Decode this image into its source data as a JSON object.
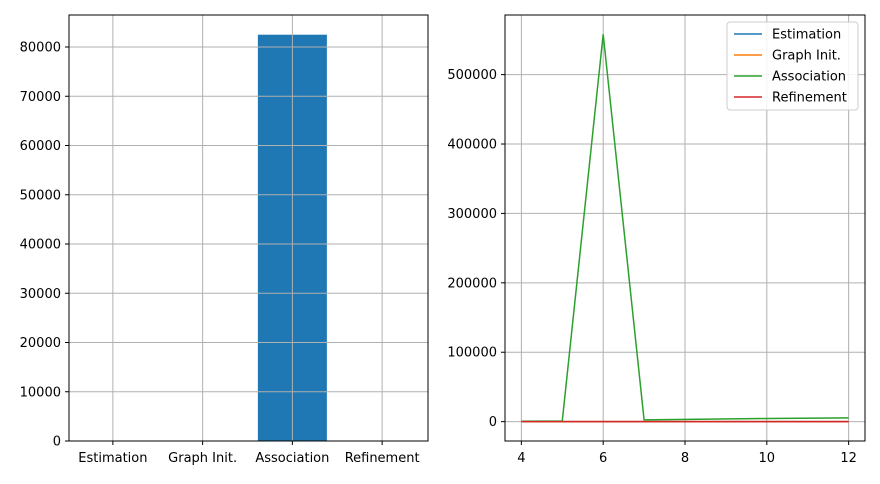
{
  "chart_data": [
    {
      "type": "bar",
      "categories": [
        "Estimation",
        "Graph Init.",
        "Association",
        "Refinement"
      ],
      "values": [
        0,
        0,
        82500,
        0
      ],
      "color": "#1f77b4",
      "ylim": [
        0,
        86500
      ],
      "yticks": [
        0,
        10000,
        20000,
        30000,
        40000,
        50000,
        60000,
        70000,
        80000
      ],
      "grid": true
    },
    {
      "type": "line",
      "x": [
        4,
        5,
        6,
        7,
        10,
        12
      ],
      "series": [
        {
          "name": "Estimation",
          "color": "#1f77b4",
          "values": [
            0,
            0,
            0,
            0,
            0,
            0
          ]
        },
        {
          "name": "Graph Init.",
          "color": "#ff7f0e",
          "values": [
            0,
            0,
            0,
            0,
            0,
            0
          ]
        },
        {
          "name": "Association",
          "color": "#2ca02c",
          "values": [
            500,
            1000,
            558000,
            2500,
            4500,
            5500
          ]
        },
        {
          "name": "Refinement",
          "color": "#d62728",
          "values": [
            0,
            0,
            0,
            0,
            0,
            0
          ]
        }
      ],
      "xlim": [
        3.6,
        12.4
      ],
      "ylim": [
        -27900,
        585900
      ],
      "xticks": [
        4,
        6,
        8,
        10,
        12
      ],
      "yticks": [
        0,
        100000,
        200000,
        300000,
        400000,
        500000
      ],
      "legend": "top-right",
      "grid": true
    }
  ]
}
